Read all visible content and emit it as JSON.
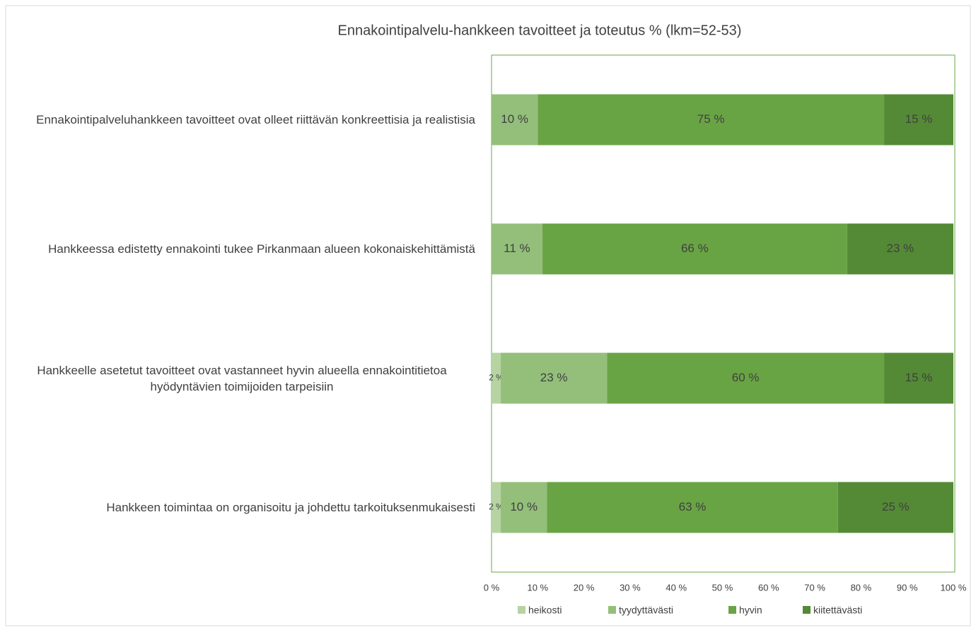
{
  "chart_data": {
    "type": "stacked-bar-horizontal",
    "title": "Ennakointipalvelu-hankkeen tavoitteet ja toteutus % (lkm=52-53)",
    "categories": [
      "Ennakointipalveluhankkeen tavoitteet ovat olleet riittävän konkreettisia ja realistisia",
      "Hankkeessa edistetty ennakointi tukee Pirkanmaan alueen kokonaiskehittämistä",
      "Hankkeelle asetetut tavoitteet ovat vastanneet hyvin alueella ennakointitietoa hyödyntävien toimijoiden tarpeisiin",
      "Hankkeen toimintaa on organisoitu ja johdettu tarkoituksenmukaisesti"
    ],
    "series": [
      {
        "name": "heikosti",
        "color": "#b6d4a1",
        "values": [
          null,
          null,
          2,
          2
        ],
        "value_labels": [
          null,
          null,
          "2 %",
          "2 %"
        ]
      },
      {
        "name": "tyydyttävästi",
        "color": "#93bf7a",
        "values": [
          10,
          11,
          23,
          10
        ],
        "value_labels": [
          "10 %",
          "11 %",
          "23 %",
          "10 %"
        ]
      },
      {
        "name": "hyvin",
        "color": "#69a444",
        "values": [
          75,
          66,
          60,
          63
        ],
        "value_labels": [
          "75 %",
          "66 %",
          "60 %",
          "63 %"
        ]
      },
      {
        "name": "kiitettävästi",
        "color": "#548a35",
        "values": [
          15,
          23,
          15,
          25
        ],
        "value_labels": [
          "15 %",
          "23 %",
          "15 %",
          "25 %"
        ]
      }
    ],
    "xlim": [
      0,
      100
    ],
    "xticks": [
      {
        "value": 0,
        "label": "0 %"
      },
      {
        "value": 10,
        "label": "10 %"
      },
      {
        "value": 20,
        "label": "20 %"
      },
      {
        "value": 30,
        "label": "30 %"
      },
      {
        "value": 40,
        "label": "40 %"
      },
      {
        "value": 50,
        "label": "50 %"
      },
      {
        "value": 60,
        "label": "60 %"
      },
      {
        "value": 70,
        "label": "70 %"
      },
      {
        "value": 80,
        "label": "80 %"
      },
      {
        "value": 90,
        "label": "90 %"
      },
      {
        "value": 100,
        "label": "100 %"
      }
    ],
    "legend": "bottom"
  }
}
